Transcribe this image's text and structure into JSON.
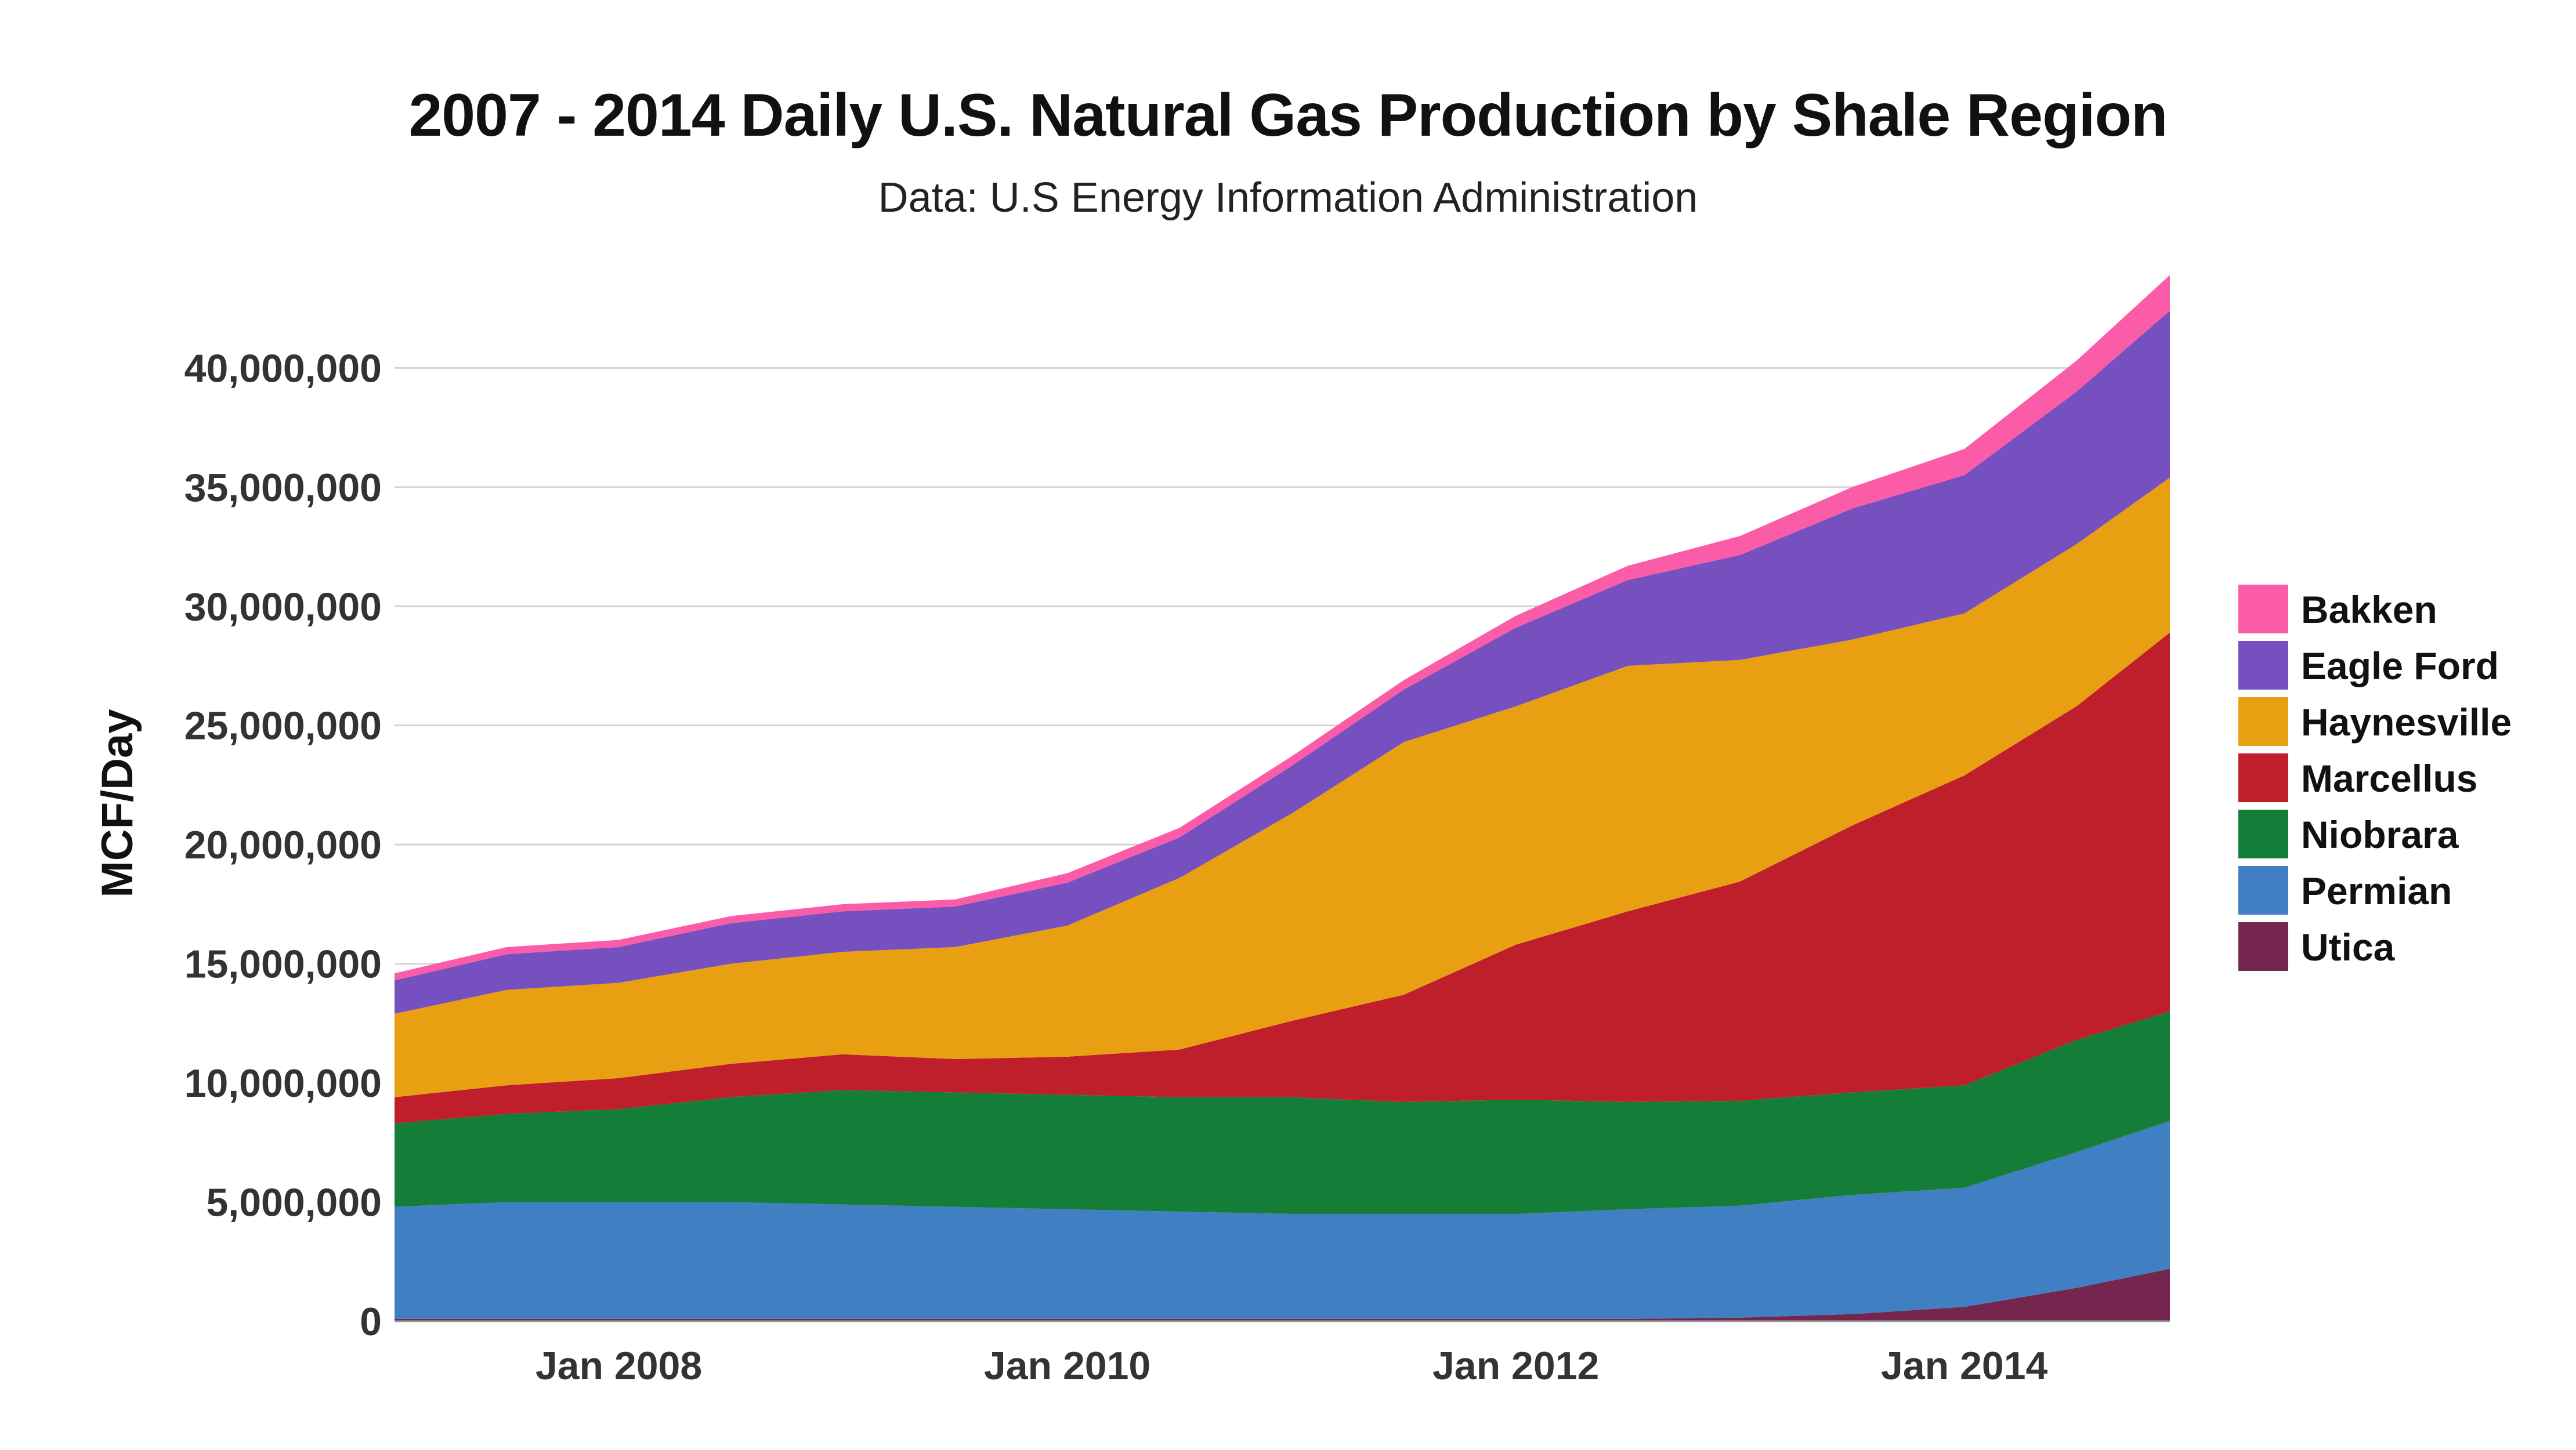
{
  "chart_data": {
    "type": "area",
    "stacked": true,
    "title": "2007 - 2014 Daily U.S. Natural Gas Production by Shale Region",
    "subtitle": "Data: U.S Energy Information Administration",
    "ylabel": "MCF/Day",
    "xlabel": "",
    "ylim": [
      0,
      44000000
    ],
    "xlim": [
      "2007-01",
      "2014-12"
    ],
    "grid": true,
    "legend_position": "right",
    "x_tick_labels": [
      "Jan 2008",
      "Jan 2010",
      "Jan 2012",
      "Jan 2014"
    ],
    "y_tick_values": [
      0,
      5000000,
      10000000,
      15000000,
      20000000,
      25000000,
      30000000,
      35000000,
      40000000
    ],
    "y_tick_labels": [
      "0",
      "5,000,000",
      "10,000,000",
      "15,000,000",
      "20,000,000",
      "25,000,000",
      "30,000,000",
      "35,000,000",
      "40,000,000"
    ],
    "x": [
      "2007-01",
      "2007-07",
      "2008-01",
      "2008-07",
      "2009-01",
      "2009-07",
      "2010-01",
      "2010-07",
      "2011-01",
      "2011-07",
      "2012-01",
      "2012-07",
      "2013-01",
      "2013-07",
      "2014-01",
      "2014-07",
      "2014-12"
    ],
    "series": [
      {
        "name": "Utica",
        "color": "#74264e",
        "values": [
          100000,
          100000,
          100000,
          100000,
          100000,
          100000,
          100000,
          100000,
          100000,
          100000,
          100000,
          100000,
          150000,
          300000,
          600000,
          1400000,
          2200000
        ]
      },
      {
        "name": "Permian",
        "color": "#3f7fc2",
        "values": [
          4700000,
          4900000,
          4900000,
          4900000,
          4800000,
          4700000,
          4600000,
          4500000,
          4400000,
          4400000,
          4400000,
          4600000,
          4700000,
          5000000,
          5000000,
          5700000,
          6200000
        ]
      },
      {
        "name": "Niobrara",
        "color": "#147d38",
        "values": [
          3500000,
          3700000,
          3900000,
          4400000,
          4800000,
          4800000,
          4800000,
          4800000,
          4900000,
          4700000,
          4800000,
          4500000,
          4400000,
          4300000,
          4300000,
          4700000,
          4600000
        ]
      },
      {
        "name": "Marcellus",
        "color": "#bf1e2b",
        "values": [
          1100000,
          1200000,
          1300000,
          1400000,
          1500000,
          1400000,
          1600000,
          2000000,
          3200000,
          4500000,
          6500000,
          8000000,
          9200000,
          11200000,
          13000000,
          14000000,
          15900000
        ]
      },
      {
        "name": "Haynesville",
        "color": "#e8a012",
        "values": [
          3500000,
          4000000,
          4000000,
          4200000,
          4300000,
          4700000,
          5500000,
          7200000,
          8700000,
          10600000,
          10000000,
          10300000,
          9300000,
          7800000,
          6800000,
          6800000,
          6500000
        ]
      },
      {
        "name": "Eagle Ford",
        "color": "#7750c0",
        "values": [
          1400000,
          1500000,
          1500000,
          1700000,
          1700000,
          1700000,
          1800000,
          1700000,
          2000000,
          2200000,
          3300000,
          3600000,
          4400000,
          5500000,
          5800000,
          6400000,
          7000000
        ]
      },
      {
        "name": "Bakken",
        "color": "#fb5ca8",
        "values": [
          300000,
          300000,
          300000,
          300000,
          300000,
          300000,
          400000,
          400000,
          400000,
          400000,
          500000,
          600000,
          800000,
          900000,
          1100000,
          1300000,
          1500000
        ]
      }
    ]
  }
}
